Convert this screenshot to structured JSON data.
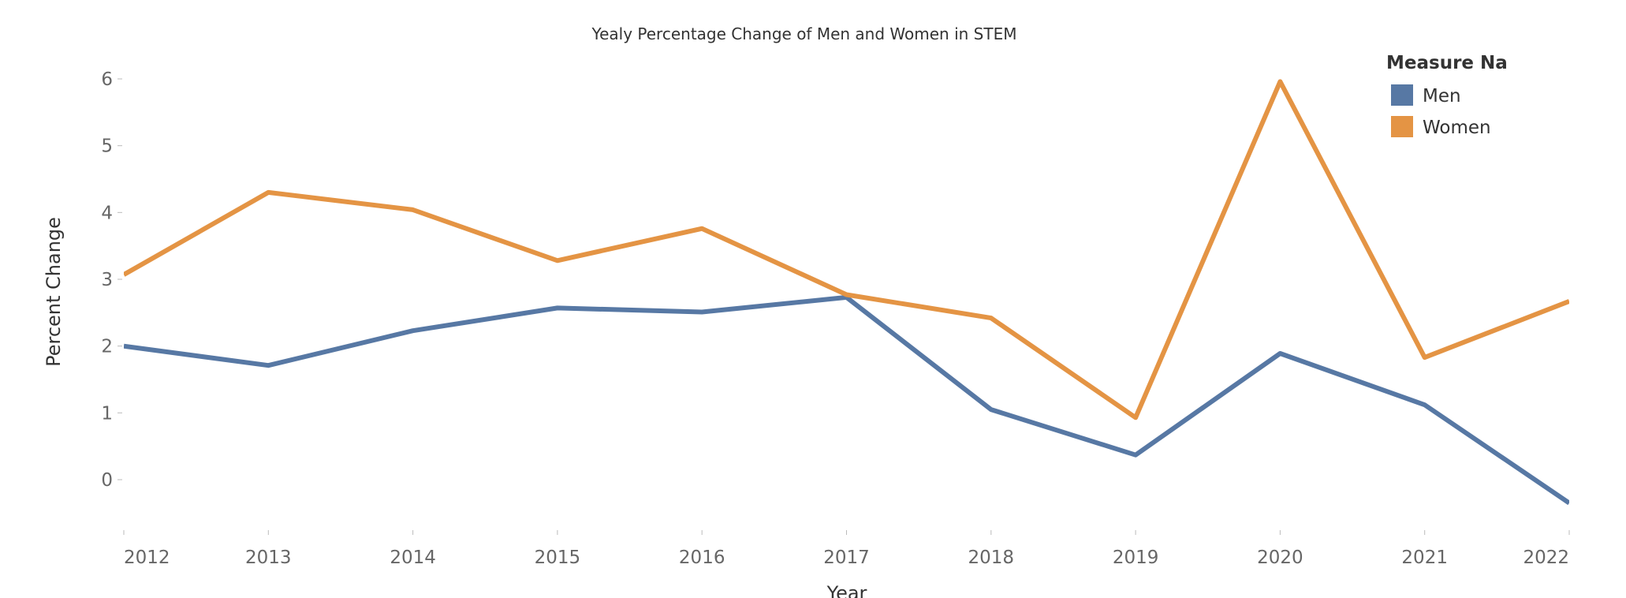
{
  "chart_data": {
    "type": "line",
    "title": "Yealy Percentage Change of Men and Women in STEM",
    "xlabel": "Year",
    "ylabel": "Percent Change",
    "categories": [
      "2012",
      "2013",
      "2014",
      "2015",
      "2016",
      "2017",
      "2018",
      "2019",
      "2020",
      "2021",
      "2022"
    ],
    "yticks": [
      0,
      1,
      2,
      3,
      4,
      5,
      6
    ],
    "ylim": [
      -0.75,
      6.2
    ],
    "grid": false,
    "legend": {
      "title": "Measure Nam",
      "placement": "top-right"
    },
    "series": [
      {
        "name": "Men",
        "color": "#5778a4",
        "values": [
          2.0,
          1.71,
          2.23,
          2.57,
          2.51,
          2.73,
          1.05,
          0.37,
          1.89,
          1.12,
          -0.35
        ]
      },
      {
        "name": "Women",
        "color": "#e49444",
        "values": [
          3.07,
          4.3,
          4.04,
          3.28,
          3.76,
          2.77,
          2.42,
          0.93,
          5.96,
          1.83,
          2.67
        ]
      }
    ]
  }
}
